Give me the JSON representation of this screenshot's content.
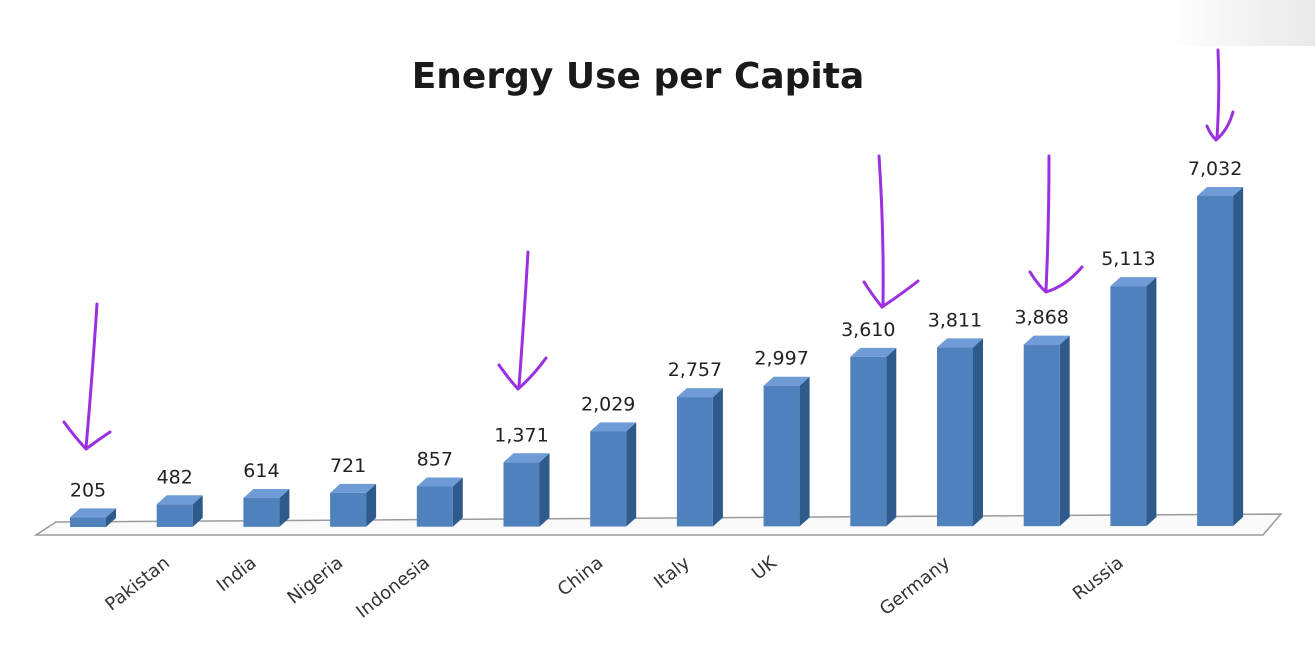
{
  "chart_data": {
    "type": "bar",
    "title": "Energy Use per Capita",
    "xlabel": "",
    "ylabel": "",
    "ylim": [
      0,
      7032
    ],
    "grid": false,
    "legend": "none",
    "categories": [
      "",
      "Pakistan",
      "India",
      "Nigeria",
      "Indonesia",
      "",
      "China",
      "Italy",
      "UK",
      "",
      "Germany",
      "",
      "Russia",
      ""
    ],
    "values": [
      205,
      482,
      614,
      721,
      857,
      1371,
      2029,
      2757,
      2997,
      3610,
      3811,
      3868,
      5113,
      7032
    ],
    "value_labels": [
      "205",
      "482",
      "614",
      "721",
      "857",
      "1,371",
      "2,029",
      "2,757",
      "2,997",
      "3,610",
      "3,811",
      "3,868",
      "5,113",
      "7,032"
    ],
    "annotations": {
      "type": "handwritten-arrows",
      "pointing_at": [
        "205",
        "1,371",
        "3,610",
        "3,868",
        "7,032"
      ]
    },
    "colors": {
      "bar_front": "#4f81bd",
      "bar_side": "#2f5a8c",
      "bar_top": "#6f9bd6",
      "annotation": "#9b30e0"
    }
  }
}
